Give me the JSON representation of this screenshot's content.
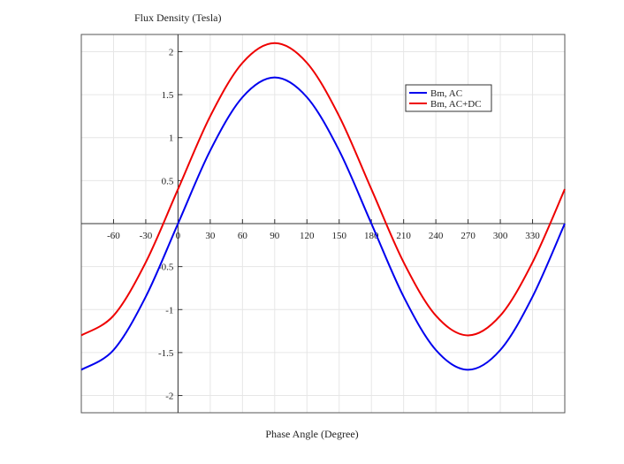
{
  "chart_data": {
    "type": "line",
    "ylabel": "Flux Density (Tesla)",
    "xlabel": "Phase Angle (Degree)",
    "xlim": [
      -90,
      360
    ],
    "ylim": [
      -2.2,
      2.2
    ],
    "xticks": [
      -60,
      -30,
      0,
      30,
      60,
      90,
      120,
      150,
      180,
      210,
      240,
      270,
      300,
      330
    ],
    "yticks": [
      -2,
      -1.5,
      -1,
      -0.5,
      0,
      0.5,
      1,
      1.5,
      2
    ],
    "xtick_labels": [
      "-60",
      "-30",
      "0",
      "30",
      "60",
      "90",
      "120",
      "150",
      "180",
      "210",
      "240",
      "270",
      "300",
      "330"
    ],
    "ytick_labels": [
      "-2",
      "-1.5",
      "-1",
      "-0.5",
      "",
      "0.5",
      "1",
      "1.5",
      "2"
    ],
    "grid": true,
    "legend_position": "top-right",
    "series": [
      {
        "name": "Bm, AC",
        "color": "#0000ee",
        "x": [
          -90,
          -60,
          -30,
          0,
          30,
          60,
          90,
          120,
          150,
          180,
          210,
          240,
          270,
          300,
          330,
          360
        ],
        "y": [
          -1.7,
          -1.47,
          -0.85,
          0,
          0.85,
          1.47,
          1.7,
          1.47,
          0.85,
          0,
          -0.85,
          -1.47,
          -1.7,
          -1.47,
          -0.85,
          0
        ]
      },
      {
        "name": "Bm, AC+DC",
        "color": "#ee0000",
        "x": [
          -90,
          -60,
          -30,
          0,
          30,
          60,
          90,
          120,
          150,
          180,
          210,
          240,
          270,
          300,
          330,
          360
        ],
        "y": [
          -1.3,
          -1.07,
          -0.45,
          0.4,
          1.25,
          1.87,
          2.1,
          1.87,
          1.25,
          0.4,
          -0.45,
          -1.07,
          -1.3,
          -1.07,
          -0.45,
          0.4
        ]
      }
    ]
  }
}
